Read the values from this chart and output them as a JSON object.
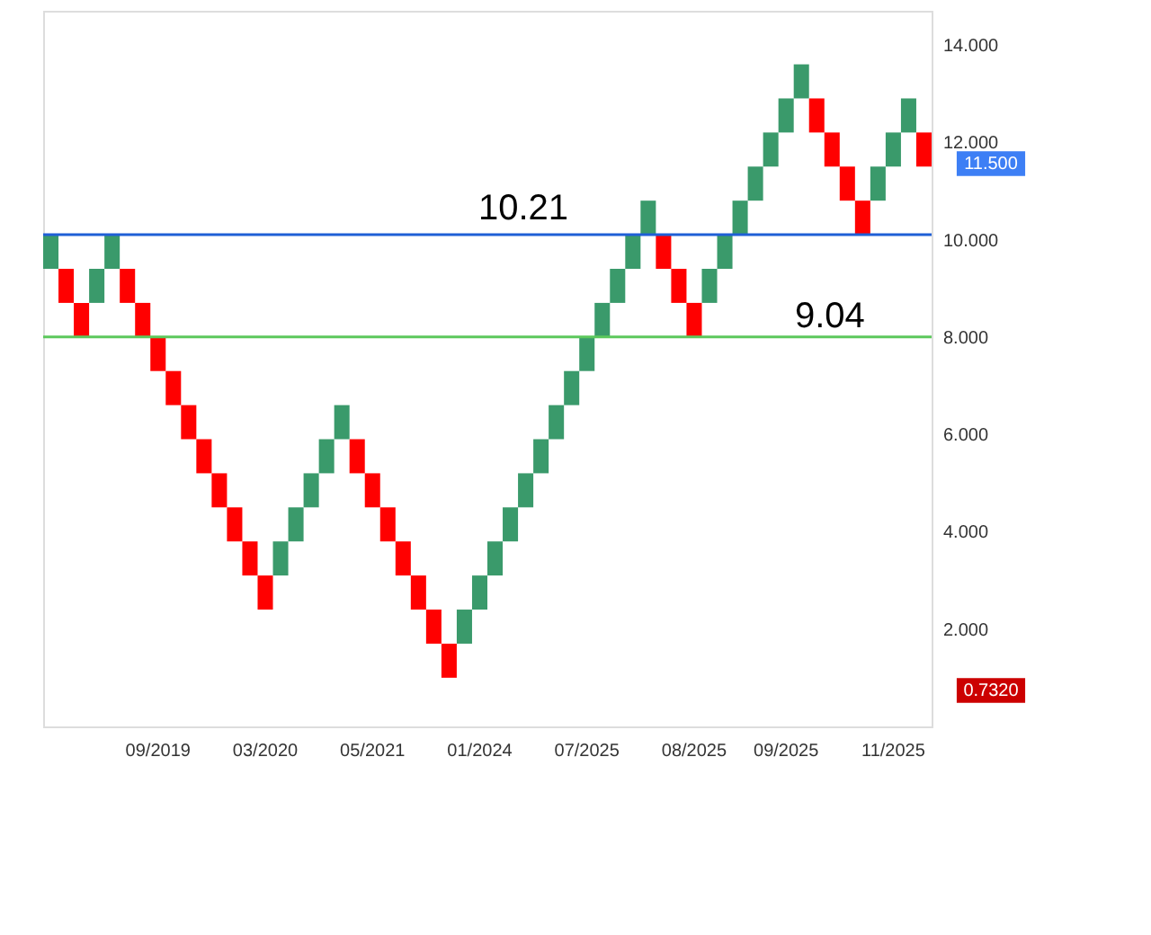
{
  "chart_data": {
    "type": "bar",
    "categories": [
      null,
      null,
      null,
      null,
      null,
      null,
      null,
      "09/2019",
      null,
      null,
      null,
      null,
      null,
      null,
      "03/2020",
      null,
      null,
      null,
      null,
      null,
      null,
      "05/2021",
      null,
      null,
      null,
      null,
      null,
      null,
      "01/2024",
      null,
      null,
      null,
      null,
      null,
      null,
      "07/2025",
      null,
      null,
      null,
      null,
      null,
      null,
      "08/2025",
      null,
      null,
      null,
      null,
      null,
      "09/2025",
      null,
      null,
      null,
      null,
      null,
      null,
      "11/2025",
      null,
      null
    ],
    "base": [
      9.4,
      9.4,
      8.7,
      8.7,
      9.4,
      9.4,
      8.7,
      8.0,
      7.3,
      6.6,
      5.9,
      5.2,
      4.5,
      3.8,
      3.1,
      3.1,
      3.8,
      4.5,
      5.2,
      5.9,
      5.9,
      5.2,
      4.5,
      3.8,
      3.1,
      2.4,
      1.7,
      1.7,
      2.4,
      3.1,
      3.8,
      4.5,
      5.2,
      5.9,
      6.6,
      7.3,
      8.0,
      8.7,
      9.4,
      10.1,
      10.1,
      9.4,
      8.7,
      8.7,
      9.4,
      10.1,
      10.8,
      11.5,
      12.2,
      12.9,
      12.9,
      12.2,
      11.5,
      10.8,
      10.8,
      11.5,
      12.2,
      12.2
    ],
    "values": [
      0.7,
      -0.7,
      -0.7,
      0.7,
      0.7,
      -0.7,
      -0.7,
      -0.7,
      -0.7,
      -0.7,
      -0.7,
      -0.7,
      -0.7,
      -0.7,
      -0.7,
      0.7,
      0.7,
      0.7,
      0.7,
      0.7,
      -0.7,
      -0.7,
      -0.7,
      -0.7,
      -0.7,
      -0.7,
      -0.7,
      0.7,
      0.7,
      0.7,
      0.7,
      0.7,
      0.7,
      0.7,
      0.7,
      0.7,
      0.7,
      0.7,
      0.7,
      0.7,
      -0.7,
      -0.7,
      -0.7,
      0.7,
      0.7,
      0.7,
      0.7,
      0.7,
      0.7,
      0.7,
      -0.7,
      -0.7,
      -0.7,
      -0.7,
      0.7,
      0.7,
      0.7,
      -0.7
    ],
    "colors": [
      "#3a9a6b",
      "#ff0000",
      "#ff0000",
      "#3a9a6b",
      "#3a9a6b",
      "#ff0000",
      "#ff0000",
      "#ff0000",
      "#ff0000",
      "#ff0000",
      "#ff0000",
      "#ff0000",
      "#ff0000",
      "#ff0000",
      "#ff0000",
      "#3a9a6b",
      "#3a9a6b",
      "#3a9a6b",
      "#3a9a6b",
      "#3a9a6b",
      "#ff0000",
      "#ff0000",
      "#ff0000",
      "#ff0000",
      "#ff0000",
      "#ff0000",
      "#ff0000",
      "#3a9a6b",
      "#3a9a6b",
      "#3a9a6b",
      "#3a9a6b",
      "#3a9a6b",
      "#3a9a6b",
      "#3a9a6b",
      "#3a9a6b",
      "#3a9a6b",
      "#3a9a6b",
      "#3a9a6b",
      "#3a9a6b",
      "#3a9a6b",
      "#ff0000",
      "#ff0000",
      "#ff0000",
      "#3a9a6b",
      "#3a9a6b",
      "#3a9a6b",
      "#3a9a6b",
      "#3a9a6b",
      "#3a9a6b",
      "#3a9a6b",
      "#ff0000",
      "#ff0000",
      "#ff0000",
      "#ff0000",
      "#3a9a6b",
      "#3a9a6b",
      "#3a9a6b",
      "#ff0000"
    ],
    "ylim": [
      0,
      14.7
    ],
    "yticks": [
      {
        "value": 2,
        "label": "2.000"
      },
      {
        "value": 4,
        "label": "4.000"
      },
      {
        "value": 6,
        "label": "6.000"
      },
      {
        "value": 8,
        "label": "8.000"
      },
      {
        "value": 10,
        "label": "10.000"
      },
      {
        "value": 12,
        "label": "12.000"
      },
      {
        "value": 14,
        "label": "14.000"
      }
    ],
    "ref_lines": [
      {
        "axis": "y",
        "value": 10.1,
        "color": "#1f5fd6"
      },
      {
        "axis": "y",
        "value": 8.0,
        "color": "#5cc85c"
      }
    ],
    "annotations": [
      "10.21",
      "9.04",
      "11.500",
      "0.7320"
    ],
    "grid": false
  }
}
